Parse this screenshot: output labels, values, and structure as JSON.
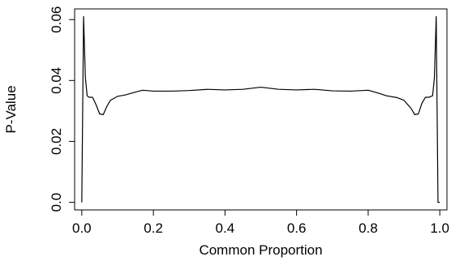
{
  "chart_data": {
    "type": "line",
    "title": "",
    "xlabel": "Common Proportion",
    "ylabel": "P-Value",
    "xlim": [
      -0.02,
      1.02
    ],
    "ylim": [
      -0.0025,
      0.0635
    ],
    "grid": false,
    "legend": "none",
    "x_ticks": [
      0.0,
      0.2,
      0.4,
      0.6,
      0.8,
      1.0
    ],
    "x_tick_labels": [
      "0.0",
      "0.2",
      "0.4",
      "0.6",
      "0.8",
      "1.0"
    ],
    "y_ticks": [
      0.0,
      0.02,
      0.04,
      0.06
    ],
    "y_tick_labels": [
      "0.0",
      "0.02",
      "0.04",
      "0.06"
    ],
    "series": [
      {
        "color": "#000000",
        "x": [
          0.0,
          0.005,
          0.01,
          0.015,
          0.02,
          0.03,
          0.04,
          0.05,
          0.06,
          0.07,
          0.08,
          0.1,
          0.12,
          0.15,
          0.17,
          0.2,
          0.25,
          0.3,
          0.35,
          0.4,
          0.45,
          0.5,
          0.55,
          0.6,
          0.65,
          0.7,
          0.75,
          0.8,
          0.83,
          0.85,
          0.88,
          0.9,
          0.92,
          0.93,
          0.94,
          0.95,
          0.96,
          0.97,
          0.98,
          0.985,
          0.99,
          0.995,
          1.0
        ],
        "y": [
          0.0,
          0.061,
          0.041,
          0.035,
          0.0345,
          0.0345,
          0.032,
          0.029,
          0.0288,
          0.0315,
          0.0335,
          0.0348,
          0.0352,
          0.0362,
          0.0368,
          0.0365,
          0.0365,
          0.0367,
          0.0371,
          0.0369,
          0.0371,
          0.0378,
          0.0371,
          0.0369,
          0.0371,
          0.0366,
          0.0365,
          0.0368,
          0.0358,
          0.035,
          0.0344,
          0.0335,
          0.0308,
          0.0288,
          0.029,
          0.0325,
          0.0345,
          0.0345,
          0.035,
          0.041,
          0.061,
          0.0,
          0.0
        ]
      }
    ]
  }
}
